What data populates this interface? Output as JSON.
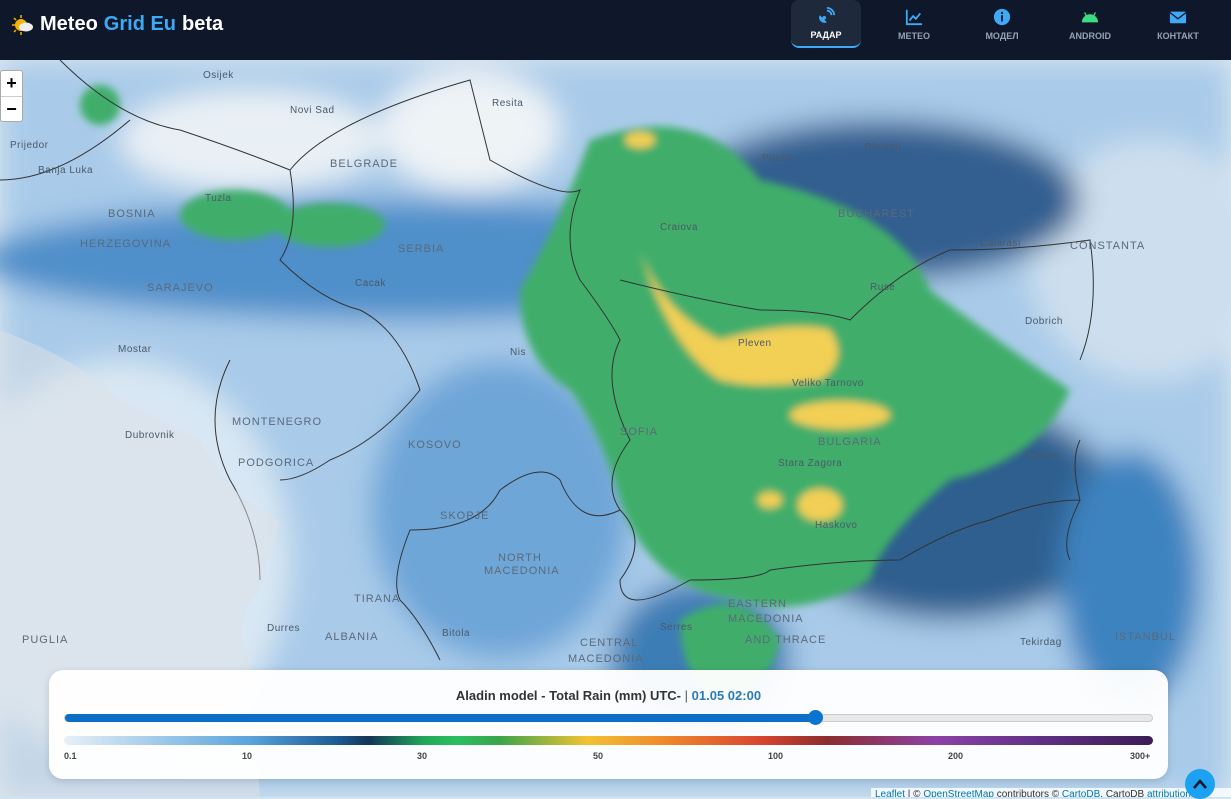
{
  "header": {
    "brand": {
      "part1": "Meteo",
      "part2": "Grid Eu",
      "part3": "beta",
      "icon": "sun-cloud-icon"
    },
    "nav": [
      {
        "label": "РАДАР",
        "icon": "satellite-dish-icon",
        "active": true
      },
      {
        "label": "МЕТЕО",
        "icon": "chart-line-icon"
      },
      {
        "label": "МОДЕЛ",
        "icon": "info-circle-icon"
      },
      {
        "label": "ANDROID",
        "icon": "android-icon",
        "color": "#3ddc84"
      },
      {
        "label": "КОНТАКТ",
        "icon": "envelope-icon"
      }
    ]
  },
  "map": {
    "zoom_in": "+",
    "zoom_out": "−",
    "labels": [
      {
        "t": "Osijek"
      },
      {
        "t": "Novi Sad"
      },
      {
        "t": "Resita"
      },
      {
        "t": "Prijedor"
      },
      {
        "t": "Banja Luka"
      },
      {
        "t": "BELGRADE"
      },
      {
        "t": "Tuzla"
      },
      {
        "t": "BOSNIA"
      },
      {
        "t": "HERZEGOVINA"
      },
      {
        "t": "SERBIA"
      },
      {
        "t": "SARAJEVO"
      },
      {
        "t": "Cacak"
      },
      {
        "t": "Craiova"
      },
      {
        "t": "Pitesti"
      },
      {
        "t": "Ploiesti"
      },
      {
        "t": "BUCHAREST"
      },
      {
        "t": "Calarasi"
      },
      {
        "t": "CONSTANTA"
      },
      {
        "t": "Ruse"
      },
      {
        "t": "Dobrich"
      },
      {
        "t": "Pleven"
      },
      {
        "t": "Veliko Tarnovo"
      },
      {
        "t": "BULGARIA"
      },
      {
        "t": "Burgas"
      },
      {
        "t": "Stara Zagora"
      },
      {
        "t": "Haskovo"
      },
      {
        "t": "SOFIA"
      },
      {
        "t": "Nis"
      },
      {
        "t": "Mostar"
      },
      {
        "t": "Dubrovnik"
      },
      {
        "t": "MONTENEGRO"
      },
      {
        "t": "PODGORICA"
      },
      {
        "t": "KOSOVO"
      },
      {
        "t": "SKOPJE"
      },
      {
        "t": "NORTH"
      },
      {
        "t": "MACEDONIA"
      },
      {
        "t": "Durres"
      },
      {
        "t": "TIRANA"
      },
      {
        "t": "ALBANIA"
      },
      {
        "t": "PUGLIA"
      },
      {
        "t": "Bitola"
      },
      {
        "t": "CENTRAL"
      },
      {
        "t": "MACEDONIA"
      },
      {
        "t": "EASTERN"
      },
      {
        "t": "MACEDONIA"
      },
      {
        "t": "AND THRACE"
      },
      {
        "t": "Serres"
      },
      {
        "t": "Tekirdag"
      },
      {
        "t": "ISTANBUL"
      }
    ]
  },
  "panel": {
    "title": "Aladin model - Total Rain (mm) UTC-",
    "separator": "|",
    "time": "01.05 02:00",
    "slider_progress_percent": 69,
    "scale_ticks": [
      "0.1",
      "10",
      "30",
      "50",
      "100",
      "200",
      "300+"
    ]
  },
  "attribution": {
    "leaflet": "Leaflet",
    "sep": " | © ",
    "osm": "OpenStreetMap",
    "contrib": " contributors © ",
    "cartodb": "CartoDB",
    "rest": ", CartoDB ",
    "attributions": "attributions"
  }
}
